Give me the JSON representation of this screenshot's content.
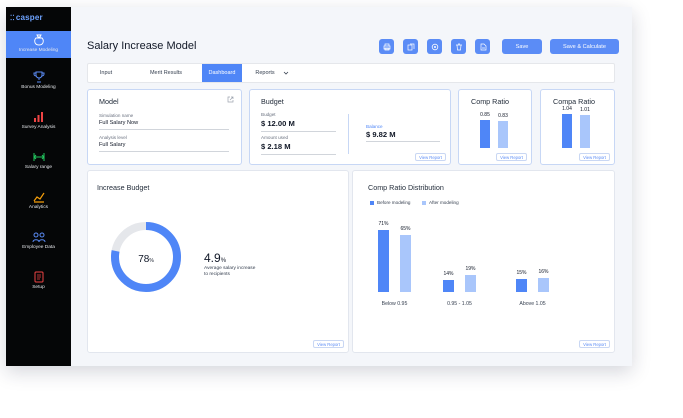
{
  "brand": {
    "name": "casper"
  },
  "sidebar": {
    "items": [
      {
        "label": "Increase Modeling",
        "icon": "money-bag-icon",
        "active": true
      },
      {
        "label": "Bonus Modeling",
        "icon": "trophy-icon"
      },
      {
        "label": "Survey Analysis",
        "icon": "bar-chart-icon"
      },
      {
        "label": "Salary range",
        "icon": "range-icon"
      },
      {
        "label": "Analytics",
        "icon": "analytics-icon"
      },
      {
        "label": "Employee Data",
        "icon": "people-icon"
      },
      {
        "label": "Setup",
        "icon": "setup-icon"
      }
    ]
  },
  "header": {
    "title": "Salary Increase Model",
    "toolbar_icons": [
      "print-icon",
      "copy-icon",
      "settings-icon",
      "delete-icon",
      "export-icon"
    ],
    "save_label": "Save",
    "save_calc_label": "Save & Calculate"
  },
  "tabs": [
    {
      "label": "Input"
    },
    {
      "label": "Merit Results"
    },
    {
      "label": "Dashboard",
      "active": true
    },
    {
      "label": "Reports"
    }
  ],
  "model_card": {
    "title": "Model",
    "sim_label": "Simulation name",
    "sim_value": "Full Salary Now",
    "level_label": "Analysis level",
    "level_value": "Full Salary"
  },
  "budget_card": {
    "title": "Budget",
    "budget_label": "Budget",
    "budget_value": "$ 12.00 M",
    "used_label": "Amount used",
    "used_value": "$ 2.18 M",
    "balance_label": "Balance",
    "balance_value": "$ 9.82 M",
    "view_report": "View Report"
  },
  "comp_ratio_card_1": {
    "title": "Comp Ratio",
    "values": [
      0.85,
      0.83
    ],
    "labels": [
      "0.85",
      "0.83"
    ],
    "view_report": "View Report"
  },
  "comp_ratio_card_2": {
    "title": "Compa Ratio",
    "values": [
      1.04,
      1.01
    ],
    "labels": [
      "1.04",
      "1.01"
    ],
    "view_report": "View Report"
  },
  "increase_budget": {
    "title": "Increase Budget",
    "donut_percent": 78,
    "donut_value": "78",
    "donut_unit": "%",
    "stat_value": "4.9",
    "stat_unit": "%",
    "stat_caption_1": "Average salary increase",
    "stat_caption_2": "to recipients",
    "view_report": "View Report"
  },
  "distribution": {
    "title": "Comp Ratio Distribution",
    "legend": [
      "Before modeling",
      "After modeling"
    ],
    "view_report": "View Report"
  },
  "chart_data": {
    "type": "bar",
    "categories": [
      "Below 0.95",
      "0.95 - 1.05",
      "Above 1.05"
    ],
    "series": [
      {
        "name": "Before modeling",
        "values": [
          71,
          14,
          15
        ]
      },
      {
        "name": "After modeling",
        "values": [
          65,
          19,
          16
        ]
      }
    ],
    "data_labels": [
      [
        "71%",
        "14%",
        "15%"
      ],
      [
        "65%",
        "19%",
        "16%"
      ]
    ],
    "ylim": [
      0,
      75
    ]
  },
  "colors": {
    "accent": "#4f86f7",
    "light": "#a9c6fb",
    "sidebar": "#050607"
  }
}
